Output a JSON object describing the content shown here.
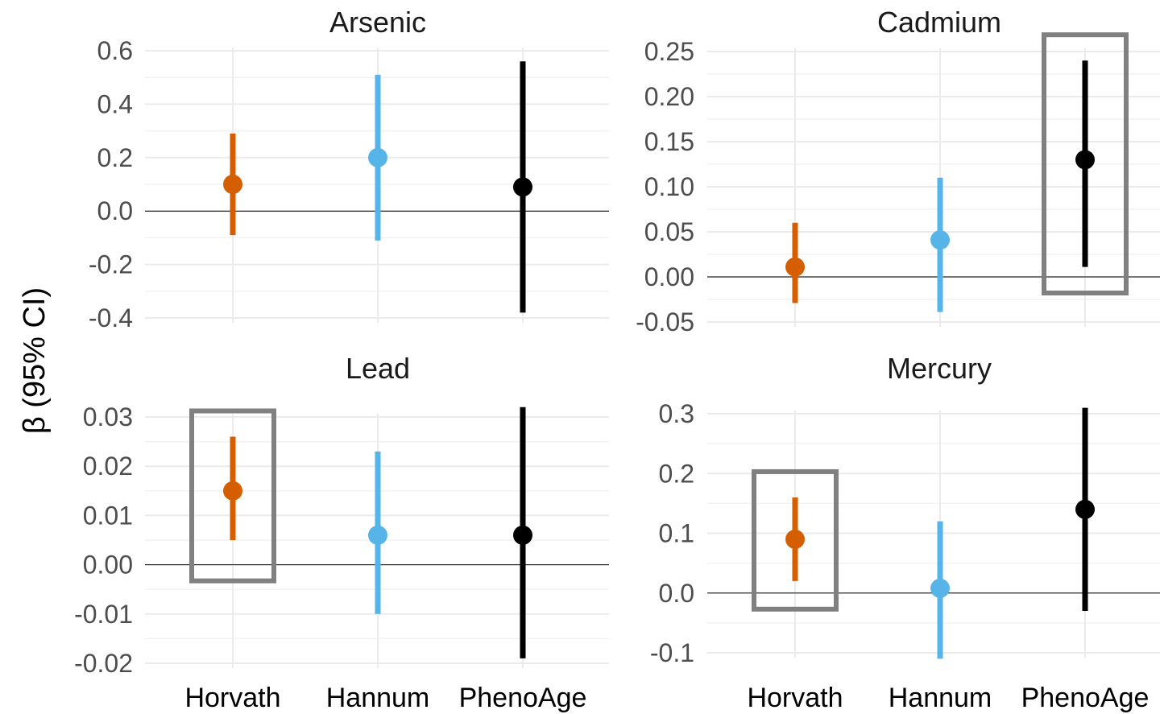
{
  "chart_data": {
    "type": "scatter",
    "ylabel": "β (95% CI)",
    "categories": [
      "Horvath",
      "Hannum",
      "PhenoAge"
    ],
    "colors": {
      "Horvath": "#D55E00",
      "Hannum": "#56B4E9",
      "PhenoAge": "#000000"
    },
    "highlight_color": "#808080",
    "panels": [
      {
        "title": "Arsenic",
        "ylim": [
          -0.4,
          0.6
        ],
        "yticks": [
          "0.6",
          "0.4",
          "0.2",
          "0.0",
          "-0.2",
          "-0.4"
        ],
        "points": [
          {
            "x": "Horvath",
            "estimate": 0.1,
            "lower": -0.09,
            "upper": 0.29
          },
          {
            "x": "Hannum",
            "estimate": 0.2,
            "lower": -0.11,
            "upper": 0.51
          },
          {
            "x": "PhenoAge",
            "estimate": 0.09,
            "lower": -0.38,
            "upper": 0.56
          }
        ],
        "highlighted": null
      },
      {
        "title": "Cadmium",
        "ylim": [
          -0.05,
          0.25
        ],
        "yticks": [
          "0.25",
          "0.20",
          "0.15",
          "0.10",
          "0.05",
          "0.00",
          "-0.05"
        ],
        "points": [
          {
            "x": "Horvath",
            "estimate": 0.011,
            "lower": -0.029,
            "upper": 0.06
          },
          {
            "x": "Hannum",
            "estimate": 0.041,
            "lower": -0.039,
            "upper": 0.11
          },
          {
            "x": "PhenoAge",
            "estimate": 0.13,
            "lower": 0.011,
            "upper": 0.24
          }
        ],
        "highlighted": "PhenoAge"
      },
      {
        "title": "Lead",
        "ylim": [
          -0.02,
          0.03
        ],
        "yticks": [
          "0.03",
          "0.02",
          "0.01",
          "0.00",
          "-0.01",
          "-0.02"
        ],
        "points": [
          {
            "x": "Horvath",
            "estimate": 0.015,
            "lower": 0.005,
            "upper": 0.026
          },
          {
            "x": "Hannum",
            "estimate": 0.006,
            "lower": -0.01,
            "upper": 0.023
          },
          {
            "x": "PhenoAge",
            "estimate": 0.006,
            "lower": -0.019,
            "upper": 0.032
          }
        ],
        "highlighted": "Horvath"
      },
      {
        "title": "Mercury",
        "ylim": [
          -0.1,
          0.3
        ],
        "yticks": [
          "0.3",
          "0.2",
          "0.1",
          "0.0",
          "-0.1"
        ],
        "points": [
          {
            "x": "Horvath",
            "estimate": 0.09,
            "lower": 0.02,
            "upper": 0.16
          },
          {
            "x": "Hannum",
            "estimate": 0.008,
            "lower": -0.11,
            "upper": 0.12
          },
          {
            "x": "PhenoAge",
            "estimate": 0.14,
            "lower": -0.03,
            "upper": 0.31
          }
        ],
        "highlighted": "Horvath"
      }
    ]
  }
}
